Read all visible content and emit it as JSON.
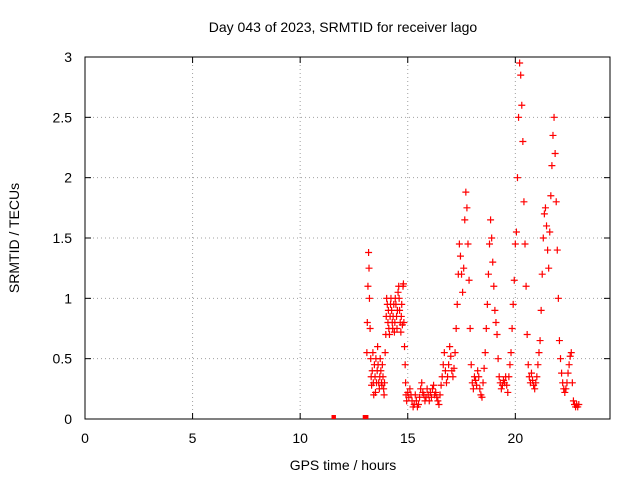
{
  "chart_data": {
    "type": "scatter",
    "title": "Day 043 of 2023, SRMTID for receiver lago",
    "xlabel": "GPS time / hours",
    "ylabel": "SRMTID / TECUs",
    "xlim": [
      0,
      24.4
    ],
    "ylim": [
      0,
      3
    ],
    "xticks": [
      0,
      5,
      10,
      15,
      20
    ],
    "yticks": [
      0,
      0.5,
      1,
      1.5,
      2,
      2.5,
      3
    ],
    "xtick_labels": [
      "0",
      "5",
      "10",
      "15",
      "20"
    ],
    "ytick_labels": [
      "0",
      "0.5",
      "1",
      "1.5",
      "2",
      "2.5",
      "3"
    ],
    "grid": true,
    "marker": "plus",
    "series": [
      {
        "name": "lago",
        "color": "#ff0000",
        "x": [
          11.55,
          11.57,
          13.0,
          13.05,
          13.08,
          13.1,
          13.12,
          13.15,
          13.18,
          13.2,
          13.22,
          13.25,
          13.28,
          13.3,
          13.32,
          13.35,
          13.38,
          13.4,
          13.42,
          13.45,
          13.48,
          13.5,
          13.52,
          13.55,
          13.58,
          13.6,
          13.62,
          13.65,
          13.68,
          13.7,
          13.72,
          13.75,
          13.78,
          13.8,
          13.82,
          13.85,
          13.88,
          13.9,
          13.92,
          13.95,
          13.98,
          14.0,
          14.02,
          14.05,
          14.08,
          14.1,
          14.12,
          14.15,
          14.18,
          14.2,
          14.22,
          14.25,
          14.28,
          14.3,
          14.32,
          14.35,
          14.38,
          14.4,
          14.42,
          14.45,
          14.48,
          14.5,
          14.52,
          14.55,
          14.58,
          14.6,
          14.62,
          14.65,
          14.68,
          14.7,
          14.72,
          14.75,
          14.78,
          14.8,
          14.82,
          14.85,
          14.88,
          14.9,
          14.92,
          14.95,
          15.0,
          15.05,
          15.1,
          15.15,
          15.2,
          15.25,
          15.3,
          15.35,
          15.4,
          15.45,
          15.5,
          15.55,
          15.6,
          15.65,
          15.7,
          15.75,
          15.8,
          15.85,
          15.9,
          15.95,
          16.0,
          16.05,
          16.1,
          16.15,
          16.2,
          16.25,
          16.3,
          16.35,
          16.4,
          16.45,
          16.5,
          16.55,
          16.6,
          16.65,
          16.7,
          16.75,
          16.8,
          16.85,
          16.9,
          16.95,
          17.0,
          17.05,
          17.1,
          17.15,
          17.2,
          17.25,
          17.3,
          17.35,
          17.4,
          17.45,
          17.5,
          17.55,
          17.6,
          17.65,
          17.7,
          17.75,
          17.8,
          17.85,
          17.9,
          17.95,
          18.0,
          18.05,
          18.1,
          18.15,
          18.2,
          18.25,
          18.3,
          18.35,
          18.4,
          18.45,
          18.5,
          18.55,
          18.6,
          18.65,
          18.7,
          18.75,
          18.8,
          18.85,
          18.9,
          18.95,
          19.0,
          19.05,
          19.1,
          19.15,
          19.2,
          19.25,
          19.3,
          19.35,
          19.4,
          19.45,
          19.5,
          19.55,
          19.6,
          19.65,
          19.7,
          19.75,
          19.8,
          19.85,
          19.9,
          19.95,
          20.0,
          20.05,
          20.1,
          20.15,
          20.2,
          20.25,
          20.3,
          20.35,
          20.4,
          20.45,
          20.5,
          20.55,
          20.6,
          20.65,
          20.7,
          20.75,
          20.8,
          20.85,
          20.9,
          20.95,
          21.0,
          21.05,
          21.1,
          21.15,
          21.2,
          21.25,
          21.3,
          21.35,
          21.4,
          21.45,
          21.5,
          21.55,
          21.6,
          21.65,
          21.7,
          21.75,
          21.8,
          21.85,
          21.9,
          21.95,
          22.0,
          22.05,
          22.1,
          22.15,
          22.2,
          22.25,
          22.3,
          22.35,
          22.4,
          22.45,
          22.5,
          22.55,
          22.6,
          22.65,
          22.7,
          22.75,
          22.8,
          22.85,
          22.9,
          22.95
        ],
        "y": [
          0.0,
          0.0,
          0.0,
          0.0,
          0.0,
          0.55,
          0.8,
          1.1,
          1.38,
          1.25,
          1.0,
          0.75,
          0.5,
          0.35,
          0.28,
          0.4,
          0.55,
          0.3,
          0.2,
          0.45,
          0.35,
          0.22,
          0.5,
          0.3,
          0.4,
          0.6,
          0.45,
          0.3,
          0.25,
          0.35,
          0.5,
          0.4,
          0.3,
          0.28,
          0.45,
          0.35,
          0.25,
          0.2,
          0.3,
          0.55,
          0.7,
          0.85,
          1.0,
          0.95,
          0.8,
          0.9,
          0.75,
          0.7,
          0.85,
          0.95,
          1.0,
          0.9,
          0.8,
          0.75,
          0.85,
          0.95,
          0.72,
          0.8,
          1.0,
          0.95,
          0.85,
          0.75,
          0.9,
          1.05,
          1.1,
          1.0,
          0.9,
          0.8,
          0.72,
          0.85,
          0.95,
          0.78,
          1.1,
          1.12,
          0.8,
          0.6,
          0.45,
          0.3,
          0.2,
          0.15,
          0.22,
          0.18,
          0.25,
          0.2,
          0.15,
          0.1,
          0.12,
          0.2,
          0.15,
          0.1,
          0.12,
          0.18,
          0.25,
          0.3,
          0.22,
          0.2,
          0.15,
          0.18,
          0.25,
          0.2,
          0.15,
          0.22,
          0.18,
          0.25,
          0.28,
          0.2,
          0.22,
          0.18,
          0.15,
          0.12,
          0.2,
          0.28,
          0.35,
          0.45,
          0.55,
          0.4,
          0.3,
          0.35,
          0.45,
          0.6,
          0.52,
          0.4,
          0.35,
          0.42,
          0.55,
          0.75,
          0.95,
          1.2,
          1.45,
          1.35,
          1.2,
          1.05,
          1.25,
          1.65,
          1.88,
          1.75,
          1.45,
          1.15,
          0.75,
          0.45,
          0.3,
          0.25,
          0.35,
          0.32,
          0.28,
          0.4,
          0.35,
          0.25,
          0.2,
          0.18,
          0.3,
          0.42,
          0.55,
          0.75,
          0.95,
          1.2,
          1.45,
          1.65,
          1.5,
          1.3,
          1.1,
          0.9,
          0.8,
          0.7,
          0.5,
          0.35,
          0.3,
          0.25,
          0.28,
          0.32,
          0.3,
          0.35,
          0.28,
          0.22,
          0.35,
          0.45,
          0.55,
          0.75,
          0.95,
          1.15,
          1.45,
          1.55,
          2.0,
          2.5,
          2.95,
          2.85,
          2.6,
          2.3,
          1.8,
          1.45,
          1.1,
          0.7,
          0.45,
          0.35,
          0.3,
          0.38,
          0.32,
          0.28,
          0.25,
          0.3,
          0.35,
          0.45,
          0.55,
          0.65,
          0.9,
          1.2,
          1.5,
          1.7,
          1.75,
          1.6,
          1.4,
          1.25,
          1.55,
          1.85,
          2.1,
          2.35,
          2.5,
          2.2,
          1.8,
          1.4,
          1.0,
          0.65,
          0.5,
          0.38,
          0.3,
          0.25,
          0.22,
          0.25,
          0.3,
          0.38,
          0.45,
          0.52,
          0.55,
          0.3,
          0.15,
          0.12,
          0.1,
          0.12,
          0.1,
          0.12
        ]
      }
    ]
  }
}
